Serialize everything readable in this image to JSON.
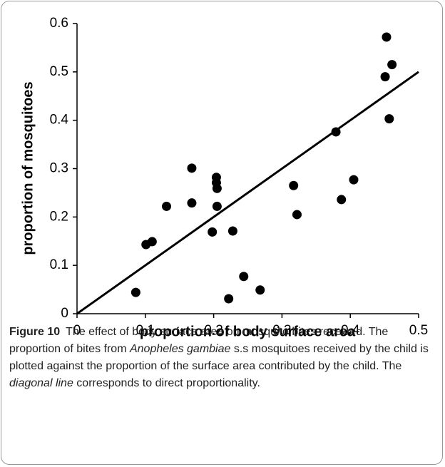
{
  "chart_data": {
    "type": "scatter",
    "xlabel": "proportion of body surface area",
    "ylabel": "proportion of mosquitoes",
    "x": [
      0.086,
      0.101,
      0.11,
      0.131,
      0.168,
      0.168,
      0.198,
      0.204,
      0.204,
      0.205,
      0.205,
      0.228,
      0.222,
      0.244,
      0.268,
      0.317,
      0.322,
      0.379,
      0.387,
      0.405,
      0.451,
      0.453,
      0.457,
      0.461
    ],
    "values": [
      0.044,
      0.143,
      0.149,
      0.222,
      0.301,
      0.229,
      0.169,
      0.282,
      0.271,
      0.259,
      0.222,
      0.171,
      0.031,
      0.077,
      0.049,
      0.265,
      0.205,
      0.376,
      0.236,
      0.277,
      0.49,
      0.572,
      0.403,
      0.515
    ],
    "color": "#000000",
    "reference_line": {
      "x": [
        0,
        0.5
      ],
      "y": [
        0,
        0.5
      ]
    },
    "xlim": [
      0,
      0.5
    ],
    "xticks": [
      0,
      0.1,
      0.2,
      0.3,
      0.4,
      0.5
    ],
    "ylim": [
      0,
      0.6
    ],
    "yticks": [
      0,
      0.1,
      0.2,
      0.3,
      0.4,
      0.5,
      0.6
    ],
    "grid": false
  },
  "caption": {
    "label": "Figure 10",
    "segments": [
      {
        "text": "The effect of body surface area on mosquito bites received. The proportion of bites from ",
        "style": "normal"
      },
      {
        "text": "Anopheles gambiae",
        "style": "italic"
      },
      {
        "text": " s.s mosquitoes received by the child is plotted against the proportion of the surface area contributed by the child. The ",
        "style": "normal"
      },
      {
        "text": "diagonal line",
        "style": "italic"
      },
      {
        "text": " corresponds to direct proportionality.",
        "style": "normal"
      }
    ]
  }
}
